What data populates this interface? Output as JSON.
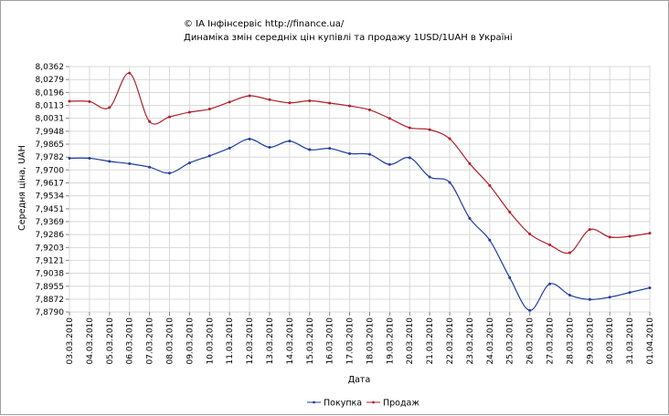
{
  "chart_data": {
    "type": "line",
    "title_line1": "© ІА Інфінсервіс http://finance.ua/",
    "title_line2": "Динаміка змін середніх цін купівлі та продажу 1USD/1UAH в Україні",
    "xlabel": "Дата",
    "ylabel": "Середня ціна, UAH",
    "ylim": [
      7.879,
      8.0362
    ],
    "y_ticks": [
      "8,0362",
      "8,0279",
      "8,0196",
      "8,0113",
      "8,0031",
      "7,9948",
      "7,9865",
      "7,9782",
      "7,9700",
      "7,9617",
      "7,9534",
      "7,9451",
      "7,9369",
      "7,9286",
      "7,9203",
      "7,9121",
      "7,9038",
      "7,8955",
      "7,8872",
      "7,8790"
    ],
    "y_tick_values": [
      8.0362,
      8.0279,
      8.0196,
      8.0113,
      8.0031,
      7.9948,
      7.9865,
      7.9782,
      7.97,
      7.9617,
      7.9534,
      7.9451,
      7.9369,
      7.9286,
      7.9203,
      7.9121,
      7.9038,
      7.8955,
      7.8872,
      7.879
    ],
    "categories": [
      "03.03.2010",
      "04.03.2010",
      "05.03.2010",
      "06.03.2010",
      "07.03.2010",
      "08.03.2010",
      "09.03.2010",
      "10.03.2010",
      "11.03.2010",
      "12.03.2010",
      "13.03.2010",
      "14.03.2010",
      "15.03.2010",
      "16.03.2010",
      "17.03.2010",
      "18.03.2010",
      "19.03.2010",
      "20.03.2010",
      "21.03.2010",
      "22.03.2010",
      "23.03.2010",
      "24.03.2010",
      "25.03.2010",
      "26.03.2010",
      "27.03.2010",
      "28.03.2010",
      "29.03.2010",
      "30.03.2010",
      "31.03.2010",
      "01.04.2010"
    ],
    "series": [
      {
        "name": "Покупка",
        "color": "#1f3d9e",
        "values": [
          7.9775,
          7.9775,
          7.9755,
          7.974,
          7.9718,
          7.968,
          7.9745,
          7.979,
          7.984,
          7.9898,
          7.9845,
          7.9885,
          7.983,
          7.9838,
          7.9805,
          7.98,
          7.9735,
          7.9778,
          7.9655,
          7.962,
          7.939,
          7.925,
          7.901,
          7.88,
          7.897,
          7.8898,
          7.887,
          7.8885,
          7.8915,
          7.8945
        ]
      },
      {
        "name": "Продаж",
        "color": "#b0202a",
        "values": [
          8.014,
          8.0138,
          8.01,
          8.032,
          8.001,
          8.004,
          8.007,
          8.009,
          8.0135,
          8.0175,
          8.015,
          8.013,
          8.0143,
          8.0128,
          8.011,
          8.0085,
          8.003,
          7.997,
          7.9958,
          7.99,
          7.974,
          7.96,
          7.943,
          7.929,
          7.922,
          7.917,
          7.9318,
          7.927,
          7.9275,
          7.9295
        ]
      }
    ],
    "grid": true,
    "legend": "bottom-center"
  }
}
